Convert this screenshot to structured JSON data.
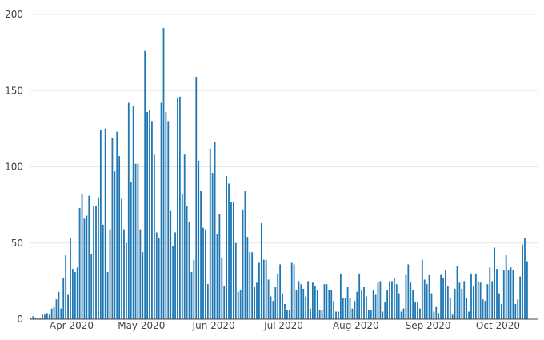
{
  "chart_data": {
    "type": "bar",
    "title": "",
    "xlabel": "",
    "ylabel": "",
    "x_start": "2020-03-14",
    "x_end": "2020-10-18",
    "ylim": [
      0,
      200
    ],
    "y_ticks": [
      0,
      50,
      100,
      150,
      200
    ],
    "x_ticks": [
      {
        "label": "Apr 2020",
        "date": "2020-04-01"
      },
      {
        "label": "May 2020",
        "date": "2020-05-01"
      },
      {
        "label": "Jun 2020",
        "date": "2020-06-01"
      },
      {
        "label": "Jul 2020",
        "date": "2020-07-01"
      },
      {
        "label": "Aug 2020",
        "date": "2020-08-01"
      },
      {
        "label": "Sep 2020",
        "date": "2020-09-01"
      },
      {
        "label": "Oct 2020",
        "date": "2020-10-01"
      }
    ],
    "grid": true,
    "legend": "none",
    "bar_color": "#1f77b4",
    "values": [
      1,
      2,
      1,
      1,
      1,
      3,
      3,
      4,
      3,
      7,
      8,
      13,
      18,
      7,
      27,
      42,
      16,
      53,
      33,
      31,
      34,
      73,
      82,
      66,
      68,
      81,
      43,
      74,
      74,
      80,
      124,
      62,
      125,
      31,
      59,
      119,
      97,
      123,
      107,
      79,
      59,
      50,
      142,
      90,
      140,
      102,
      102,
      59,
      44,
      176,
      136,
      137,
      130,
      108,
      57,
      53,
      142,
      191,
      136,
      130,
      71,
      48,
      57,
      145,
      146,
      82,
      108,
      74,
      64,
      31,
      39,
      159,
      104,
      84,
      60,
      59,
      23,
      112,
      96,
      116,
      56,
      69,
      40,
      22,
      94,
      89,
      77,
      77,
      50,
      18,
      19,
      72,
      84,
      54,
      44,
      44,
      21,
      24,
      37,
      63,
      39,
      39,
      26,
      15,
      12,
      21,
      30,
      36,
      17,
      10,
      6,
      6,
      37,
      36,
      19,
      25,
      23,
      20,
      15,
      25,
      7,
      24,
      22,
      19,
      6,
      6,
      23,
      23,
      19,
      19,
      12,
      5,
      5,
      30,
      14,
      14,
      21,
      14,
      7,
      12,
      18,
      30,
      19,
      21,
      15,
      6,
      6,
      19,
      16,
      24,
      25,
      5,
      11,
      19,
      25,
      25,
      27,
      23,
      17,
      5,
      7,
      29,
      36,
      24,
      19,
      11,
      11,
      7,
      39,
      26,
      23,
      29,
      17,
      5,
      8,
      4,
      29,
      27,
      32,
      22,
      14,
      3,
      20,
      35,
      24,
      20,
      25,
      14,
      5,
      30,
      22,
      30,
      25,
      24,
      13,
      12,
      23,
      34,
      25,
      47,
      33,
      17,
      10,
      32,
      42,
      32,
      34,
      32,
      10,
      13,
      28,
      49,
      53,
      38
    ]
  }
}
